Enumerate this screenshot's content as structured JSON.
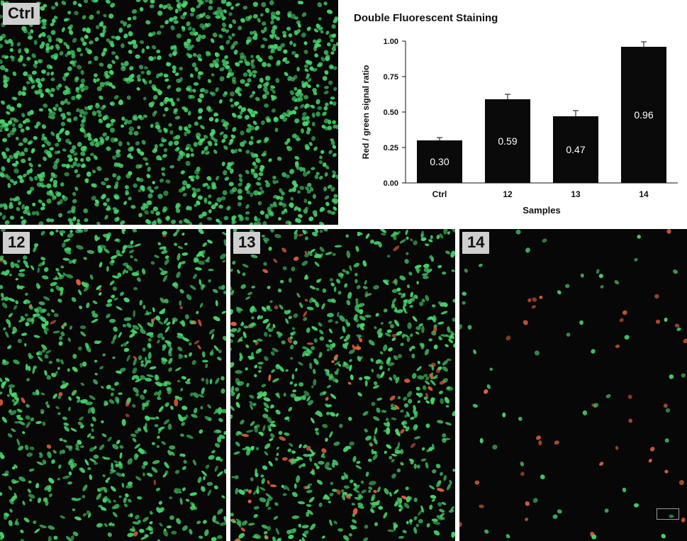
{
  "panels": [
    {
      "id": "ctrl",
      "label": "Ctrl"
    },
    {
      "id": "p12",
      "label": "12"
    },
    {
      "id": "p13",
      "label": "13"
    },
    {
      "id": "p14",
      "label": "14"
    }
  ],
  "colors": {
    "green_cell": "#46d36a",
    "red_cell": "#e2603c",
    "bar_fill": "#0a0a0a",
    "panel_bg": "#070707"
  },
  "chart_data": {
    "type": "bar",
    "title": "Double Fluorescent Staining",
    "xlabel": "Samples",
    "ylabel": "Red / green signal ratio",
    "categories": [
      "Ctrl",
      "12",
      "13",
      "14"
    ],
    "values": [
      0.3,
      0.59,
      0.47,
      0.96
    ],
    "errors": [
      0.02,
      0.035,
      0.04,
      0.035
    ],
    "data_labels": [
      "0.30",
      "0.59",
      "0.47",
      "0.96"
    ],
    "yticks": [
      "0.00",
      "0.25",
      "0.50",
      "0.75",
      "1.00"
    ],
    "ylim": [
      0,
      1.0
    ],
    "grid": false,
    "legend": "none"
  }
}
